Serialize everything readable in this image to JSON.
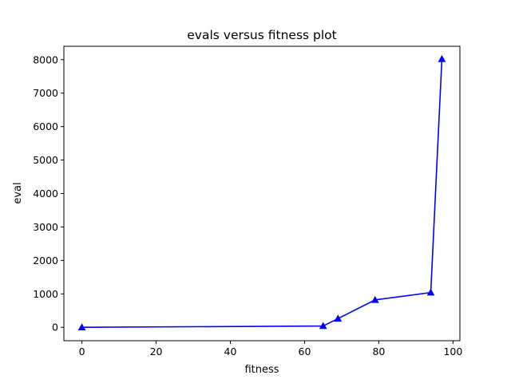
{
  "chart_data": {
    "type": "line",
    "title": "evals versus fitness plot",
    "xlabel": "fitness",
    "ylabel": "eval",
    "xlim": [
      -4.85,
      101.85
    ],
    "ylim": [
      -400,
      8400
    ],
    "xticks": [
      0,
      20,
      40,
      60,
      80,
      100
    ],
    "yticks": [
      0,
      1000,
      2000,
      3000,
      4000,
      5000,
      6000,
      7000,
      8000
    ],
    "grid": false,
    "series": [
      {
        "color": "#0000ff",
        "marker": "triangle-up",
        "x": [
          0,
          65,
          69,
          79,
          94,
          97
        ],
        "y": [
          0,
          40,
          260,
          820,
          1040,
          8020
        ]
      }
    ]
  }
}
